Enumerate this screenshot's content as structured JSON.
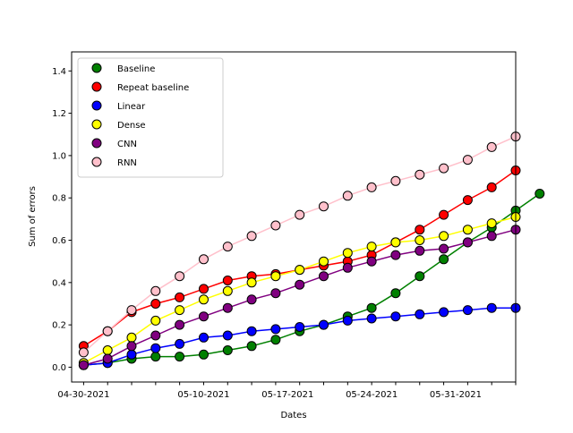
{
  "chart_data": {
    "type": "line",
    "xlabel": "Dates",
    "ylabel": "Sum of errors",
    "x_tick_labels": [
      "04-30-2021",
      "05-10-2021",
      "05-17-2021",
      "05-24-2021",
      "05-31-2021"
    ],
    "x": [
      "04-30-2021",
      "05-01-2021",
      "05-02-2021",
      "05-03-2021",
      "05-04-2021",
      "05-05-2021",
      "05-06-2021",
      "05-07-2021",
      "05-08-2021",
      "05-09-2021",
      "05-10-2021",
      "05-11-2021",
      "05-12-2021",
      "05-13-2021",
      "05-14-2021",
      "05-15-2021",
      "05-16-2021",
      "05-17-2021",
      "05-18-2021",
      "05-19-2021",
      "05-20-2021",
      "05-21-2021",
      "05-22-2021",
      "05-23-2021",
      "05-24-2021",
      "05-25-2021",
      "05-26-2021",
      "05-27-2021",
      "05-28-2021",
      "05-29-2021",
      "05-30-2021",
      "05-31-2021",
      "06-01-2021",
      "06-02-2021",
      "06-03-2021",
      "06-04-2021"
    ],
    "xlim": [
      "04-29-2021",
      "06-05-2021"
    ],
    "ylim": [
      -0.07,
      1.49
    ],
    "y_ticks": [
      0.0,
      0.2,
      0.4,
      0.6,
      0.8,
      1.0,
      1.2,
      1.4
    ],
    "legend_position": "top-left",
    "grid": false,
    "marker": "circle",
    "series": [
      {
        "name": "Baseline",
        "color": "#008000",
        "x": [
          "04-30-2021",
          "05-02-2021",
          "05-04-2021",
          "05-06-2021",
          "05-08-2021",
          "05-10-2021",
          "05-12-2021",
          "05-14-2021",
          "05-16-2021",
          "05-18-2021",
          "05-20-2021",
          "05-22-2021",
          "05-24-2021",
          "05-26-2021",
          "05-28-2021",
          "05-30-2021",
          "06-01-2021",
          "06-03-2021",
          "06-05-2021",
          "06-07-2021"
        ],
        "values": [
          0.01,
          0.02,
          0.04,
          0.05,
          0.05,
          0.06,
          0.08,
          0.1,
          0.13,
          0.17,
          0.2,
          0.24,
          0.28,
          0.35,
          0.43,
          0.51,
          0.59,
          0.66,
          0.74,
          0.82
        ]
      },
      {
        "name": "Repeat baseline",
        "color": "#ff0000",
        "x": [
          "04-30-2021",
          "05-02-2021",
          "05-04-2021",
          "05-06-2021",
          "05-08-2021",
          "05-10-2021",
          "05-12-2021",
          "05-14-2021",
          "05-16-2021",
          "05-18-2021",
          "05-20-2021",
          "05-22-2021",
          "05-24-2021",
          "05-26-2021",
          "05-28-2021",
          "05-30-2021",
          "06-01-2021",
          "06-03-2021",
          "06-05-2021"
        ],
        "values": [
          0.1,
          0.17,
          0.26,
          0.3,
          0.33,
          0.37,
          0.41,
          0.43,
          0.44,
          0.46,
          0.48,
          0.5,
          0.53,
          0.59,
          0.65,
          0.72,
          0.79,
          0.85,
          0.93
        ]
      },
      {
        "name": "Linear",
        "color": "#0000ff",
        "x": [
          "04-30-2021",
          "05-02-2021",
          "05-04-2021",
          "05-06-2021",
          "05-08-2021",
          "05-10-2021",
          "05-12-2021",
          "05-14-2021",
          "05-16-2021",
          "05-18-2021",
          "05-20-2021",
          "05-22-2021",
          "05-24-2021",
          "05-26-2021",
          "05-28-2021",
          "05-30-2021",
          "06-01-2021",
          "06-03-2021",
          "06-05-2021"
        ],
        "values": [
          0.01,
          0.02,
          0.06,
          0.09,
          0.11,
          0.14,
          0.15,
          0.17,
          0.18,
          0.19,
          0.2,
          0.22,
          0.23,
          0.24,
          0.25,
          0.26,
          0.27,
          0.28,
          0.28
        ]
      },
      {
        "name": "Dense",
        "color": "#ffff00",
        "x": [
          "04-30-2021",
          "05-02-2021",
          "05-04-2021",
          "05-06-2021",
          "05-08-2021",
          "05-10-2021",
          "05-12-2021",
          "05-14-2021",
          "05-16-2021",
          "05-18-2021",
          "05-20-2021",
          "05-22-2021",
          "05-24-2021",
          "05-26-2021",
          "05-28-2021",
          "05-30-2021",
          "06-01-2021",
          "06-03-2021",
          "06-05-2021"
        ],
        "values": [
          0.02,
          0.08,
          0.14,
          0.22,
          0.27,
          0.32,
          0.36,
          0.4,
          0.43,
          0.46,
          0.5,
          0.54,
          0.57,
          0.59,
          0.6,
          0.62,
          0.65,
          0.68,
          0.71
        ]
      },
      {
        "name": "CNN",
        "color": "#800080",
        "x": [
          "04-30-2021",
          "05-02-2021",
          "05-04-2021",
          "05-06-2021",
          "05-08-2021",
          "05-10-2021",
          "05-12-2021",
          "05-14-2021",
          "05-16-2021",
          "05-18-2021",
          "05-20-2021",
          "05-22-2021",
          "05-24-2021",
          "05-26-2021",
          "05-28-2021",
          "05-30-2021",
          "06-01-2021",
          "06-03-2021",
          "06-05-2021"
        ],
        "values": [
          0.01,
          0.04,
          0.1,
          0.15,
          0.2,
          0.24,
          0.28,
          0.32,
          0.35,
          0.39,
          0.43,
          0.47,
          0.5,
          0.53,
          0.55,
          0.56,
          0.59,
          0.62,
          0.65
        ]
      },
      {
        "name": "RNN",
        "color": "#ffc0cb",
        "x": [
          "04-30-2021",
          "05-02-2021",
          "05-04-2021",
          "05-06-2021",
          "05-08-2021",
          "05-10-2021",
          "05-12-2021",
          "05-14-2021",
          "05-16-2021",
          "05-18-2021",
          "05-20-2021",
          "05-22-2021",
          "05-24-2021",
          "05-26-2021",
          "05-28-2021",
          "05-30-2021",
          "06-01-2021",
          "06-03-2021",
          "06-05-2021"
        ],
        "values": [
          0.07,
          0.17,
          0.27,
          0.36,
          0.43,
          0.51,
          0.57,
          0.62,
          0.67,
          0.72,
          0.76,
          0.81,
          0.85,
          0.88,
          0.91,
          0.94,
          0.98,
          1.04,
          1.09
        ]
      }
    ]
  }
}
